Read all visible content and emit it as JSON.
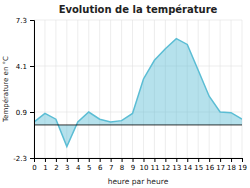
{
  "chart_data": {
    "type": "area",
    "title": "Evolution de la température",
    "x_label": "heure par heure",
    "y_label": "Température en °C",
    "x": [
      0,
      1,
      2,
      3,
      4,
      5,
      6,
      7,
      8,
      9,
      10,
      11,
      12,
      13,
      14,
      15,
      16,
      17,
      18,
      19
    ],
    "values": [
      0.2,
      0.8,
      0.4,
      -1.5,
      0.2,
      0.9,
      0.4,
      0.2,
      0.3,
      0.8,
      3.2,
      4.5,
      5.3,
      6.0,
      5.6,
      3.8,
      2.0,
      0.9,
      0.85,
      0.4
    ],
    "color": "#5bbdd4",
    "xlim": [
      0,
      19
    ],
    "xticks": [
      0,
      1,
      2,
      3,
      4,
      5,
      6,
      7,
      8,
      9,
      10,
      11,
      12,
      13,
      14,
      15,
      16,
      17,
      18,
      19
    ],
    "ylim": [
      -2.3,
      7.3
    ],
    "yticks": [
      -2.3,
      0.9,
      4.1,
      7.3
    ],
    "grid": true
  }
}
